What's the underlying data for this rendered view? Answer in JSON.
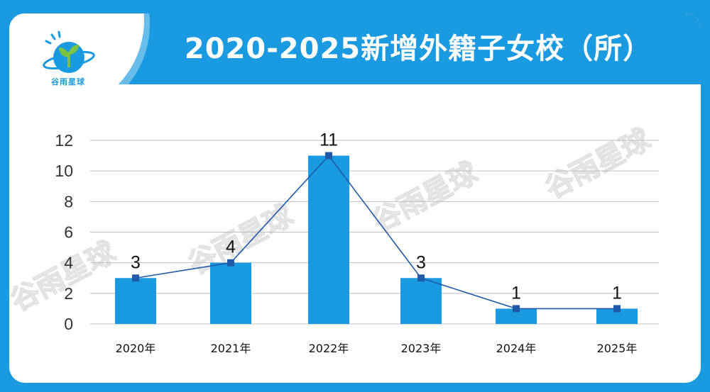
{
  "title": "2020-2025新增外籍子女校（所）",
  "logo": {
    "text": "谷雨星球",
    "icon": "sprout-planet-icon"
  },
  "watermark": "谷雨星球",
  "colors": {
    "accent": "#1a9ae0",
    "bar": "#1a9ae0",
    "line": "#1f5aa8",
    "marker": "#1f5aa8",
    "grid": "#bfbfbf",
    "text": "#111111"
  },
  "chart_data": {
    "type": "bar",
    "categories": [
      "2020年",
      "2021年",
      "2022年",
      "2023年",
      "2024年",
      "2025年"
    ],
    "values": [
      3,
      4,
      11,
      3,
      1,
      1
    ],
    "data_labels": [
      "3",
      "4",
      "11",
      "3",
      "1",
      "1"
    ],
    "overlay_line": true,
    "ylim": [
      0,
      12
    ],
    "yticks": [
      0,
      2,
      4,
      6,
      8,
      10,
      12
    ],
    "grid": true,
    "legend": "none",
    "xlabel": "",
    "ylabel": ""
  }
}
